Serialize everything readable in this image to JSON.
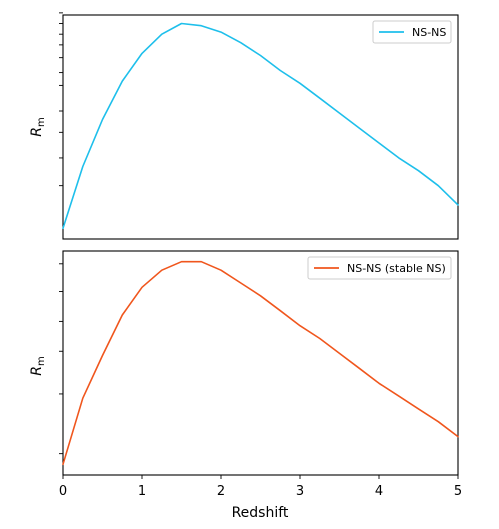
{
  "chart_data": [
    {
      "type": "line",
      "panel": "top",
      "title": "",
      "xlabel": "",
      "ylabel": "R",
      "ylabel_subscript": "m",
      "xlim": [
        0,
        5
      ],
      "ylim": [
        0,
        1.05
      ],
      "x_ticks": [],
      "y_ticks": [
        0.25,
        0.38,
        0.5,
        0.6,
        0.72,
        0.78,
        0.85,
        0.91,
        0.96,
        1.01,
        1.06
      ],
      "legend": "top-right",
      "series": [
        {
          "name": "NS-NS",
          "color": "#1ebfeb",
          "x": [
            0,
            0.25,
            0.5,
            0.75,
            1.0,
            1.25,
            1.5,
            1.75,
            2.0,
            2.25,
            2.5,
            2.75,
            3.0,
            3.25,
            3.5,
            3.75,
            4.0,
            4.25,
            4.5,
            4.75,
            5.0
          ],
          "y": [
            0.05,
            0.34,
            0.56,
            0.74,
            0.87,
            0.96,
            1.01,
            1.0,
            0.97,
            0.92,
            0.86,
            0.79,
            0.73,
            0.66,
            0.59,
            0.52,
            0.45,
            0.38,
            0.32,
            0.25,
            0.16
          ]
        }
      ]
    },
    {
      "type": "line",
      "panel": "bottom",
      "title": "",
      "xlabel": "Redshift",
      "ylabel": "R",
      "ylabel_subscript": "m",
      "xlim": [
        0,
        5
      ],
      "ylim": [
        0,
        1.05
      ],
      "x_ticks": [
        0,
        1,
        2,
        3,
        4,
        5
      ],
      "y_ticks": [
        0.1,
        0.38,
        0.58,
        0.72,
        0.86,
        0.99
      ],
      "legend": "top-right",
      "series": [
        {
          "name": "NS-NS (stable NS)",
          "color": "#f0561d",
          "x": [
            0,
            0.25,
            0.5,
            0.75,
            1.0,
            1.25,
            1.5,
            1.75,
            2.0,
            2.25,
            2.5,
            2.75,
            3.0,
            3.25,
            3.5,
            3.75,
            4.0,
            4.25,
            4.5,
            4.75,
            5.0
          ],
          "y": [
            0.05,
            0.36,
            0.56,
            0.75,
            0.88,
            0.96,
            1.0,
            1.0,
            0.96,
            0.9,
            0.84,
            0.77,
            0.7,
            0.64,
            0.57,
            0.5,
            0.43,
            0.37,
            0.31,
            0.25,
            0.18
          ]
        }
      ]
    }
  ]
}
